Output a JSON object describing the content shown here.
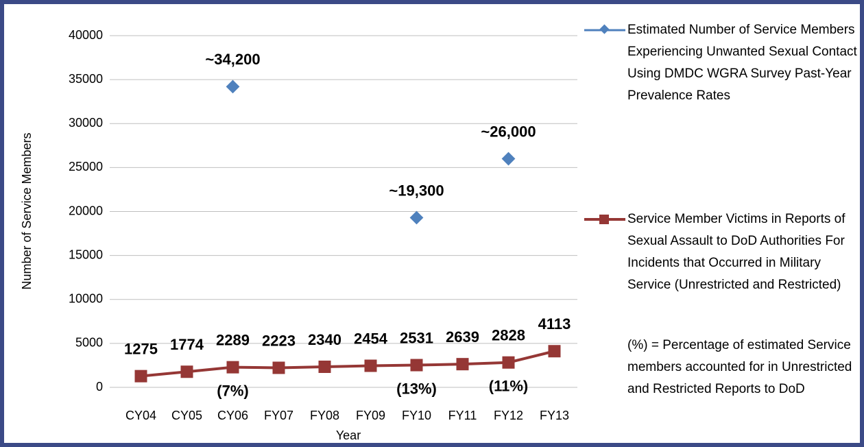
{
  "chart_data": {
    "type": "line",
    "y_label": "Number of Service Members",
    "x_label": "Year",
    "categories": [
      "CY04",
      "CY05",
      "CY06",
      "FY07",
      "FY08",
      "FY09",
      "FY10",
      "FY11",
      "FY12",
      "FY13"
    ],
    "ylim": [
      0,
      40000
    ],
    "yticks": [
      0,
      5000,
      10000,
      15000,
      20000,
      25000,
      30000,
      35000,
      40000
    ],
    "grid": true,
    "series": [
      {
        "name": "Estimated Number of Service Members Experiencing Unwanted Sexual Contact Using DMDC WGRA Survey Past-Year Prevalence Rates",
        "color": "#4f81bd",
        "marker": "diamond",
        "line": false,
        "values": [
          null,
          null,
          34200,
          null,
          null,
          null,
          19300,
          null,
          26000,
          null
        ],
        "value_labels": [
          null,
          null,
          "~34,200",
          null,
          null,
          null,
          "~19,300",
          null,
          "~26,000",
          null
        ],
        "percent_labels": [
          null,
          null,
          "(7%)",
          null,
          null,
          null,
          "(13%)",
          null,
          "(11%)",
          null
        ]
      },
      {
        "name": "Service Member Victims in Reports of Sexual Assault to DoD Authorities For Incidents that Occurred in Military Service (Unrestricted and Restricted)",
        "color": "#953735",
        "marker": "square",
        "line": true,
        "values": [
          1275,
          1774,
          2289,
          2223,
          2340,
          2454,
          2531,
          2639,
          2828,
          4113
        ]
      }
    ],
    "note": "(%) = Percentage of estimated Service members accounted for in Unrestricted and Restricted Reports to DoD"
  }
}
